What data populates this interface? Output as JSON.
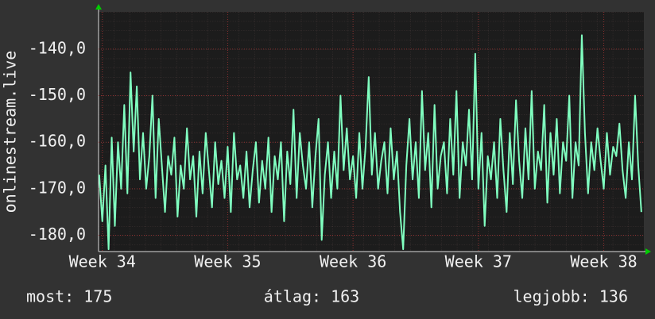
{
  "chart_data": {
    "type": "line",
    "y_label": "onlinestream.live",
    "color": "#80ffc0",
    "grid": true,
    "x": [
      33.975,
      34,
      34.025,
      34.05,
      34.075,
      34.1,
      34.125,
      34.15,
      34.175,
      34.2,
      34.225,
      34.25,
      34.275,
      34.3,
      34.325,
      34.35,
      34.375,
      34.4,
      34.425,
      34.45,
      34.475,
      34.5,
      34.525,
      34.55,
      34.575,
      34.6,
      34.625,
      34.65,
      34.675,
      34.7,
      34.725,
      34.75,
      34.775,
      34.8,
      34.825,
      34.85,
      34.875,
      34.9,
      34.925,
      34.95,
      34.975,
      35,
      35.025,
      35.05,
      35.075,
      35.1,
      35.125,
      35.15,
      35.175,
      35.2,
      35.225,
      35.25,
      35.275,
      35.3,
      35.325,
      35.35,
      35.375,
      35.4,
      35.425,
      35.45,
      35.475,
      35.5,
      35.525,
      35.55,
      35.575,
      35.6,
      35.625,
      35.65,
      35.675,
      35.7,
      35.725,
      35.75,
      35.775,
      35.8,
      35.825,
      35.85,
      35.875,
      35.9,
      35.925,
      35.95,
      35.975,
      36,
      36.025,
      36.05,
      36.075,
      36.1,
      36.125,
      36.15,
      36.175,
      36.2,
      36.225,
      36.25,
      36.275,
      36.3,
      36.325,
      36.35,
      36.375,
      36.4,
      36.425,
      36.45,
      36.475,
      36.5,
      36.525,
      36.55,
      36.575,
      36.6,
      36.625,
      36.65,
      36.675,
      36.7,
      36.725,
      36.75,
      36.775,
      36.8,
      36.825,
      36.85,
      36.875,
      36.9,
      36.925,
      36.95,
      36.975,
      37,
      37.025,
      37.05,
      37.075,
      37.1,
      37.125,
      37.15,
      37.175,
      37.2,
      37.225,
      37.25,
      37.275,
      37.3,
      37.325,
      37.35,
      37.375,
      37.4,
      37.425,
      37.45,
      37.475,
      37.5,
      37.525,
      37.55,
      37.575,
      37.6,
      37.625,
      37.65,
      37.675,
      37.7,
      37.725,
      37.75,
      37.775,
      37.8,
      37.825,
      37.85,
      37.875,
      37.9,
      37.925,
      37.95,
      37.975,
      38,
      38.025,
      38.05,
      38.075,
      38.1,
      38.125,
      38.15,
      38.175,
      38.2,
      38.225,
      38.25,
      38.275,
      38.3
    ],
    "values": [
      -167,
      -177,
      -165,
      -183,
      -159,
      -178,
      -160,
      -170,
      -152,
      -171,
      -145,
      -162,
      -148,
      -168,
      -158,
      -170,
      -163,
      -150,
      -172,
      -155,
      -165,
      -175,
      -163,
      -167,
      -159,
      -176,
      -165,
      -170,
      -157,
      -168,
      -163,
      -176,
      -162,
      -171,
      -158,
      -166,
      -174,
      -160,
      -169,
      -164,
      -172,
      -161,
      -175,
      -158,
      -168,
      -165,
      -172,
      -162,
      -174,
      -166,
      -160,
      -173,
      -164,
      -170,
      -159,
      -175,
      -163,
      -168,
      -160,
      -177,
      -162,
      -169,
      -153,
      -172,
      -158,
      -165,
      -170,
      -160,
      -174,
      -163,
      -155,
      -181,
      -167,
      -160,
      -172,
      -162,
      -170,
      -150,
      -166,
      -157,
      -168,
      -163,
      -172,
      -158,
      -170,
      -161,
      -146,
      -167,
      -158,
      -170,
      -164,
      -160,
      -171,
      -157,
      -168,
      -162,
      -175,
      -183,
      -165,
      -155,
      -168,
      -160,
      -172,
      -149,
      -166,
      -158,
      -174,
      -152,
      -170,
      -163,
      -160,
      -171,
      -155,
      -167,
      -149,
      -172,
      -160,
      -165,
      -153,
      -168,
      -141,
      -170,
      -158,
      -178,
      -163,
      -168,
      -160,
      -172,
      -155,
      -166,
      -175,
      -158,
      -169,
      -151,
      -164,
      -172,
      -157,
      -168,
      -149,
      -170,
      -162,
      -166,
      -152,
      -173,
      -158,
      -167,
      -155,
      -171,
      -160,
      -164,
      -150,
      -172,
      -160,
      -165,
      -137,
      -158,
      -171,
      -160,
      -166,
      -157,
      -164,
      -170,
      -158,
      -167,
      -161,
      -163,
      -156,
      -166,
      -172,
      -160,
      -168,
      -150,
      -165,
      -175
    ],
    "xlim": [
      33.97,
      38.32
    ],
    "xticks": [
      {
        "value": 34,
        "label": "Week 34"
      },
      {
        "value": 35,
        "label": "Week 35"
      },
      {
        "value": 36,
        "label": "Week 36"
      },
      {
        "value": 37,
        "label": "Week 37"
      },
      {
        "value": 38,
        "label": "Week 38"
      }
    ],
    "ylim": [
      -183.5,
      -132
    ],
    "yticks": [
      {
        "value": -180,
        "label": "-180,0"
      },
      {
        "value": -170,
        "label": "-170,0"
      },
      {
        "value": -160,
        "label": "-160,0"
      },
      {
        "value": -150,
        "label": "-150,0"
      },
      {
        "value": -140,
        "label": "-140,0"
      }
    ],
    "stats": [
      "most: 175",
      "átlag: 163",
      "legjobb: 136"
    ]
  }
}
